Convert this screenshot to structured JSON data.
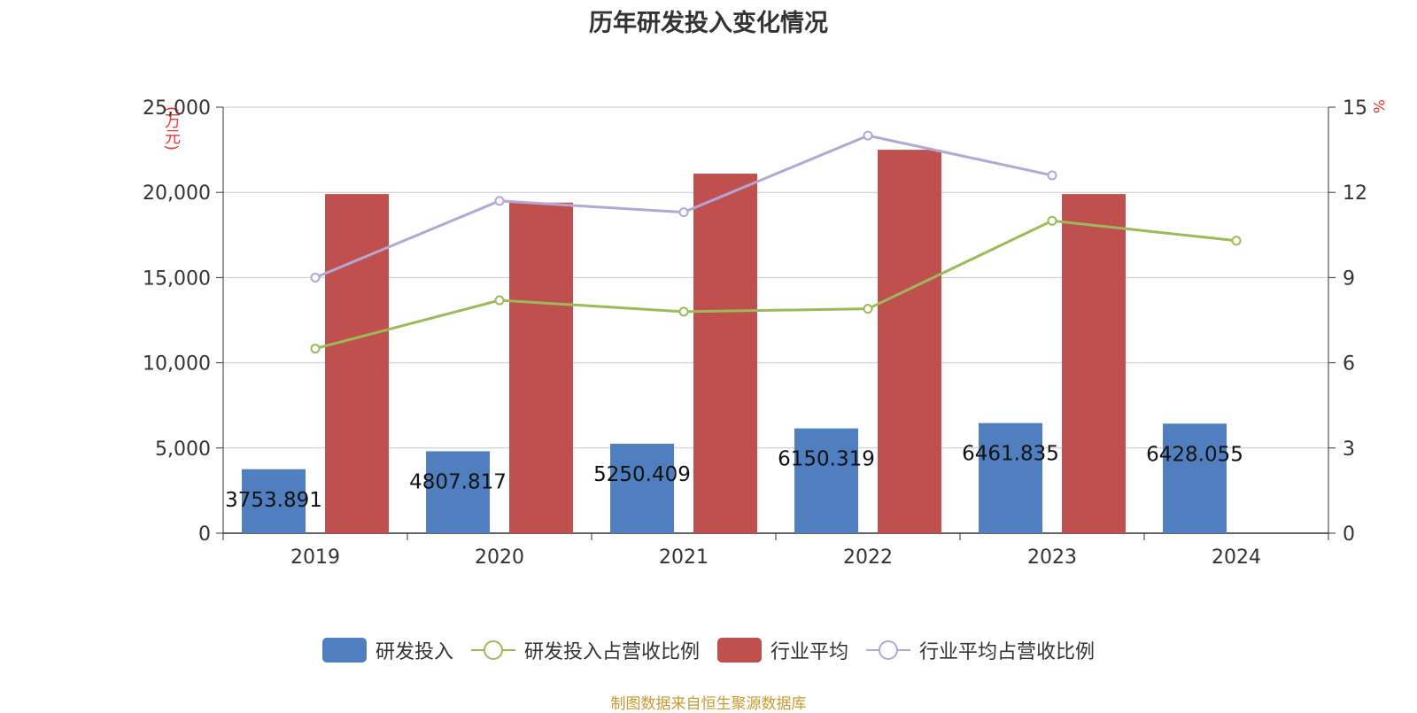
{
  "title": "历年研发投入变化情况",
  "y_left_unit": "(万元)",
  "y_right_unit": "%",
  "source": "制图数据来自恒生聚源数据库",
  "colors": {
    "rd_bar": "#4f7fbf",
    "industry_bar": "#c0504d",
    "rd_ratio_line": "#9bbb59",
    "industry_ratio_line": "#b4a7d6",
    "grid": "#c8c8c8",
    "axis_text": "#333333"
  },
  "legend": [
    {
      "label": "研发投入",
      "kind": "bar",
      "color": "#4f7fbf"
    },
    {
      "label": "研发投入占营收比例",
      "kind": "line",
      "color": "#9bbb59"
    },
    {
      "label": "行业平均",
      "kind": "bar",
      "color": "#c0504d"
    },
    {
      "label": "行业平均占营收比例",
      "kind": "line",
      "color": "#b4a7d6"
    }
  ],
  "chart_data": {
    "type": "bar",
    "categories": [
      "2019",
      "2020",
      "2021",
      "2022",
      "2023",
      "2024"
    ],
    "y_left": {
      "ylim": [
        0,
        25000
      ],
      "ticks": [
        "0",
        "5,000",
        "10,000",
        "15,000",
        "20,000",
        "25,000"
      ],
      "tick_values": [
        0,
        5000,
        10000,
        15000,
        20000,
        25000
      ]
    },
    "y_right": {
      "ylim": [
        0,
        15
      ],
      "ticks": [
        "0",
        "3",
        "6",
        "9",
        "12",
        "15"
      ],
      "tick_values": [
        0,
        3,
        6,
        9,
        12,
        15
      ]
    },
    "grid": true,
    "legend_position": "bottom",
    "series": [
      {
        "name": "研发投入",
        "type": "bar",
        "axis": "left",
        "values": [
          3753.891,
          4807.817,
          5250.409,
          6150.319,
          6461.835,
          6428.055
        ],
        "labels": [
          "3753.891",
          "4807.817",
          "5250.409",
          "6150.319",
          "6461.835",
          "6428.055"
        ]
      },
      {
        "name": "研发投入占营收比例",
        "type": "line",
        "axis": "right",
        "values": [
          6.5,
          8.2,
          7.8,
          7.9,
          11.0,
          10.3
        ]
      },
      {
        "name": "行业平均",
        "type": "bar",
        "axis": "left",
        "values": [
          19900,
          19400,
          21100,
          22500,
          19900,
          null
        ]
      },
      {
        "name": "行业平均占营收比例",
        "type": "line",
        "axis": "right",
        "values": [
          9.0,
          11.7,
          11.3,
          14.0,
          12.6,
          null
        ]
      }
    ]
  }
}
